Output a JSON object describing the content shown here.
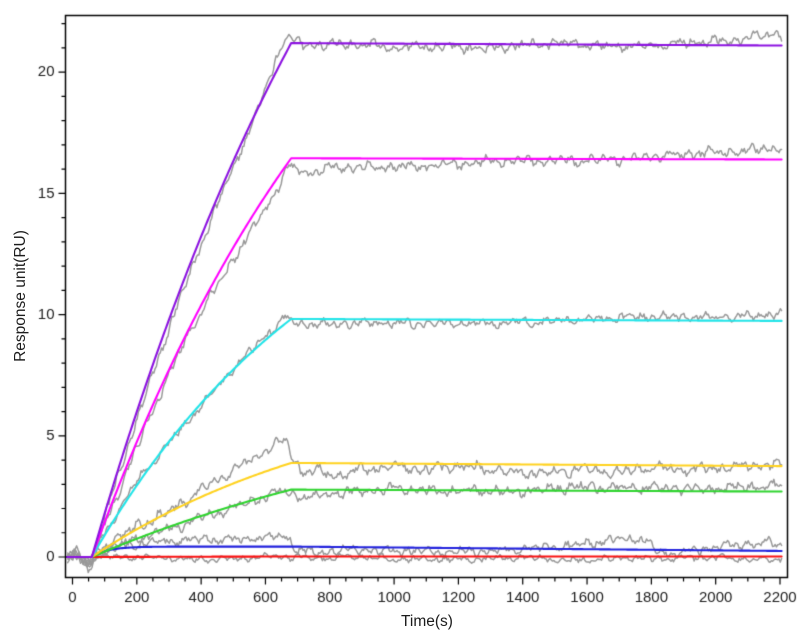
{
  "chart_data": {
    "type": "line",
    "title": "",
    "subtitle": "",
    "xlabel": "Time(s)",
    "ylabel": "Response unit(RU)",
    "xlim": [
      -22,
      2222
    ],
    "ylim": [
      -0.83,
      22.36
    ],
    "grid": false,
    "legend": "none",
    "x_ticks": {
      "major_labels": [
        0,
        200,
        400,
        600,
        800,
        1000,
        1200,
        1400,
        1600,
        1800,
        2000,
        2200
      ],
      "major_step_s": 200,
      "minor_step_s": 50
    },
    "y_ticks": {
      "major_labels": [
        0,
        5,
        10,
        15,
        20
      ],
      "major_step_RU": 5,
      "minor_step_RU": 1
    },
    "model": {
      "description": "SPR sensorgram: baseline, association phase, slow dissociation phase",
      "baseline_start_s": 0,
      "injection_start_s": 60,
      "injection_end_s": 680,
      "run_end_s": 2200
    },
    "raw_trace_color": "#999999",
    "axis_color": "#000000",
    "series": [
      {
        "name": "fit-violet",
        "fit_color": "#8C12E0",
        "response_at_injection_end_RU": 21.2,
        "response_at_run_end_RU": 21.1,
        "kobs_per_s": 0.001,
        "raw_noise_RU": 0.2,
        "raw_drift": [
          [
            -15,
            0
          ],
          [
            5,
            0.1
          ],
          [
            18,
            0.35
          ],
          [
            35,
            -0.1
          ],
          [
            48,
            -0.45
          ],
          [
            58,
            -0.25
          ],
          [
            80,
            -0.1
          ],
          [
            200,
            -0.35
          ],
          [
            350,
            -0.45
          ],
          [
            500,
            -0.3
          ],
          [
            580,
            0.0
          ],
          [
            630,
            0.5
          ],
          [
            655,
            0.8
          ],
          [
            670,
            0.6
          ],
          [
            685,
            0.15
          ],
          [
            720,
            -0.05
          ],
          [
            850,
            -0.05
          ],
          [
            1000,
            -0.2
          ],
          [
            1150,
            -0.05
          ],
          [
            1300,
            -0.15
          ],
          [
            1500,
            0.0
          ],
          [
            1700,
            -0.05
          ],
          [
            1900,
            0.1
          ],
          [
            2050,
            0.15
          ],
          [
            2150,
            0.4
          ],
          [
            2205,
            0.45
          ]
        ]
      },
      {
        "name": "fit-magenta",
        "fit_color": "#FF00FF",
        "response_at_injection_end_RU": 16.45,
        "response_at_run_end_RU": 16.4,
        "kobs_per_s": 0.0011,
        "raw_noise_RU": 0.2,
        "raw_drift": [
          [
            -15,
            0
          ],
          [
            5,
            0.05
          ],
          [
            20,
            0.3
          ],
          [
            40,
            -0.3
          ],
          [
            55,
            -0.4
          ],
          [
            80,
            -0.15
          ],
          [
            200,
            -0.3
          ],
          [
            350,
            -0.2
          ],
          [
            500,
            -0.45
          ],
          [
            600,
            -0.5
          ],
          [
            650,
            -0.35
          ],
          [
            668,
            -0.2
          ],
          [
            690,
            -0.5
          ],
          [
            730,
            -0.65
          ],
          [
            800,
            -0.45
          ],
          [
            950,
            -0.35
          ],
          [
            1100,
            -0.25
          ],
          [
            1300,
            -0.15
          ],
          [
            1500,
            -0.1
          ],
          [
            1700,
            0.05
          ],
          [
            1900,
            0.15
          ],
          [
            2050,
            0.3
          ],
          [
            2150,
            0.5
          ],
          [
            2205,
            0.45
          ]
        ]
      },
      {
        "name": "fit-cyan",
        "fit_color": "#22E4E8",
        "response_at_injection_end_RU": 9.82,
        "response_at_run_end_RU": 9.74,
        "kobs_per_s": 0.0013,
        "raw_noise_RU": 0.18,
        "raw_drift": [
          [
            -15,
            0
          ],
          [
            10,
            0.2
          ],
          [
            30,
            -0.2
          ],
          [
            50,
            -0.35
          ],
          [
            70,
            0.0
          ],
          [
            200,
            0.1
          ],
          [
            350,
            -0.1
          ],
          [
            500,
            0.05
          ],
          [
            620,
            0.15
          ],
          [
            660,
            0.25
          ],
          [
            680,
            -0.1
          ],
          [
            720,
            -0.3
          ],
          [
            800,
            -0.2
          ],
          [
            950,
            -0.1
          ],
          [
            1100,
            -0.15
          ],
          [
            1250,
            -0.2
          ],
          [
            1400,
            -0.1
          ],
          [
            1550,
            0.05
          ],
          [
            1700,
            0.1
          ],
          [
            1850,
            0.1
          ],
          [
            2000,
            0.15
          ],
          [
            2100,
            0.25
          ],
          [
            2205,
            0.3
          ]
        ]
      },
      {
        "name": "fit-yellow",
        "fit_color": "#FFD21F",
        "response_at_injection_end_RU": 3.88,
        "response_at_run_end_RU": 3.75,
        "kobs_per_s": 0.0012,
        "raw_noise_RU": 0.22,
        "raw_drift": [
          [
            -15,
            0
          ],
          [
            10,
            0.15
          ],
          [
            30,
            -0.25
          ],
          [
            50,
            -0.3
          ],
          [
            80,
            0.05
          ],
          [
            200,
            0.15
          ],
          [
            300,
            0.1
          ],
          [
            400,
            0.3
          ],
          [
            500,
            0.5
          ],
          [
            570,
            0.7
          ],
          [
            620,
            0.9
          ],
          [
            650,
            1.0
          ],
          [
            668,
            0.9
          ],
          [
            685,
            0.2
          ],
          [
            710,
            -0.35
          ],
          [
            760,
            -0.3
          ],
          [
            820,
            -0.5
          ],
          [
            880,
            -0.2
          ],
          [
            1000,
            -0.15
          ],
          [
            1100,
            -0.3
          ],
          [
            1200,
            -0.1
          ],
          [
            1350,
            -0.25
          ],
          [
            1500,
            -0.3
          ],
          [
            1600,
            -0.2
          ],
          [
            1700,
            -0.35
          ],
          [
            1800,
            -0.15
          ],
          [
            1900,
            -0.1
          ],
          [
            2000,
            -0.05
          ],
          [
            2100,
            0.0
          ],
          [
            2205,
            0.05
          ]
        ]
      },
      {
        "name": "fit-green",
        "fit_color": "#2FD42F",
        "response_at_injection_end_RU": 2.78,
        "response_at_run_end_RU": 2.7,
        "kobs_per_s": 0.0008,
        "raw_noise_RU": 0.2,
        "raw_drift": [
          [
            -15,
            0
          ],
          [
            10,
            0.1
          ],
          [
            30,
            -0.2
          ],
          [
            50,
            -0.3
          ],
          [
            80,
            0.1
          ],
          [
            200,
            0.05
          ],
          [
            350,
            -0.15
          ],
          [
            500,
            -0.1
          ],
          [
            600,
            0.0
          ],
          [
            650,
            0.1
          ],
          [
            680,
            -0.1
          ],
          [
            730,
            -0.3
          ],
          [
            800,
            -0.15
          ],
          [
            950,
            0.0
          ],
          [
            1100,
            -0.05
          ],
          [
            1250,
            0.05
          ],
          [
            1400,
            0.0
          ],
          [
            1550,
            0.1
          ],
          [
            1700,
            0.1
          ],
          [
            1850,
            0.2
          ],
          [
            1950,
            0.1
          ],
          [
            2050,
            0.15
          ],
          [
            2205,
            0.2
          ]
        ]
      },
      {
        "name": "fit-blue",
        "fit_color": "#2222DD",
        "response_at_injection_end_RU": 0.43,
        "response_at_run_end_RU": 0.25,
        "kobs_per_s": 0.02,
        "raw_noise_RU": 0.18,
        "raw_drift": [
          [
            -15,
            0
          ],
          [
            10,
            0.2
          ],
          [
            30,
            -0.15
          ],
          [
            50,
            -0.25
          ],
          [
            80,
            0.05
          ],
          [
            150,
            0.1
          ],
          [
            250,
            0.15
          ],
          [
            350,
            0.25
          ],
          [
            450,
            0.3
          ],
          [
            550,
            0.35
          ],
          [
            620,
            0.45
          ],
          [
            655,
            0.5
          ],
          [
            675,
            0.3
          ],
          [
            700,
            -0.15
          ],
          [
            760,
            -0.25
          ],
          [
            850,
            -0.15
          ],
          [
            950,
            -0.2
          ],
          [
            1050,
            -0.1
          ],
          [
            1150,
            -0.15
          ],
          [
            1250,
            -0.05
          ],
          [
            1350,
            -0.1
          ],
          [
            1450,
            0.0
          ],
          [
            1550,
            0.1
          ],
          [
            1650,
            0.35
          ],
          [
            1720,
            0.5
          ],
          [
            1780,
            0.45
          ],
          [
            1820,
            -0.05
          ],
          [
            1880,
            -0.1
          ],
          [
            1950,
            0.0
          ],
          [
            2050,
            0.15
          ],
          [
            2130,
            0.3
          ],
          [
            2205,
            0.3
          ]
        ]
      },
      {
        "name": "fit-red",
        "fit_color": "#F91010",
        "response_at_injection_end_RU": 0.02,
        "response_at_run_end_RU": 0.02,
        "kobs_per_s": 0.001,
        "raw_noise_RU": 0.13,
        "raw_drift": [
          [
            -15,
            0
          ],
          [
            10,
            0.1
          ],
          [
            30,
            -0.15
          ],
          [
            50,
            -0.2
          ],
          [
            80,
            0.0
          ],
          [
            200,
            -0.05
          ],
          [
            400,
            -0.1
          ],
          [
            600,
            0.0
          ],
          [
            700,
            -0.05
          ],
          [
            800,
            -0.1
          ],
          [
            900,
            0.0
          ],
          [
            1000,
            -0.1
          ],
          [
            1100,
            -0.05
          ],
          [
            1250,
            -0.15
          ],
          [
            1400,
            -0.05
          ],
          [
            1550,
            -0.15
          ],
          [
            1700,
            -0.05
          ],
          [
            1850,
            -0.1
          ],
          [
            2000,
            -0.05
          ],
          [
            2100,
            -0.1
          ],
          [
            2205,
            -0.05
          ]
        ]
      }
    ]
  }
}
